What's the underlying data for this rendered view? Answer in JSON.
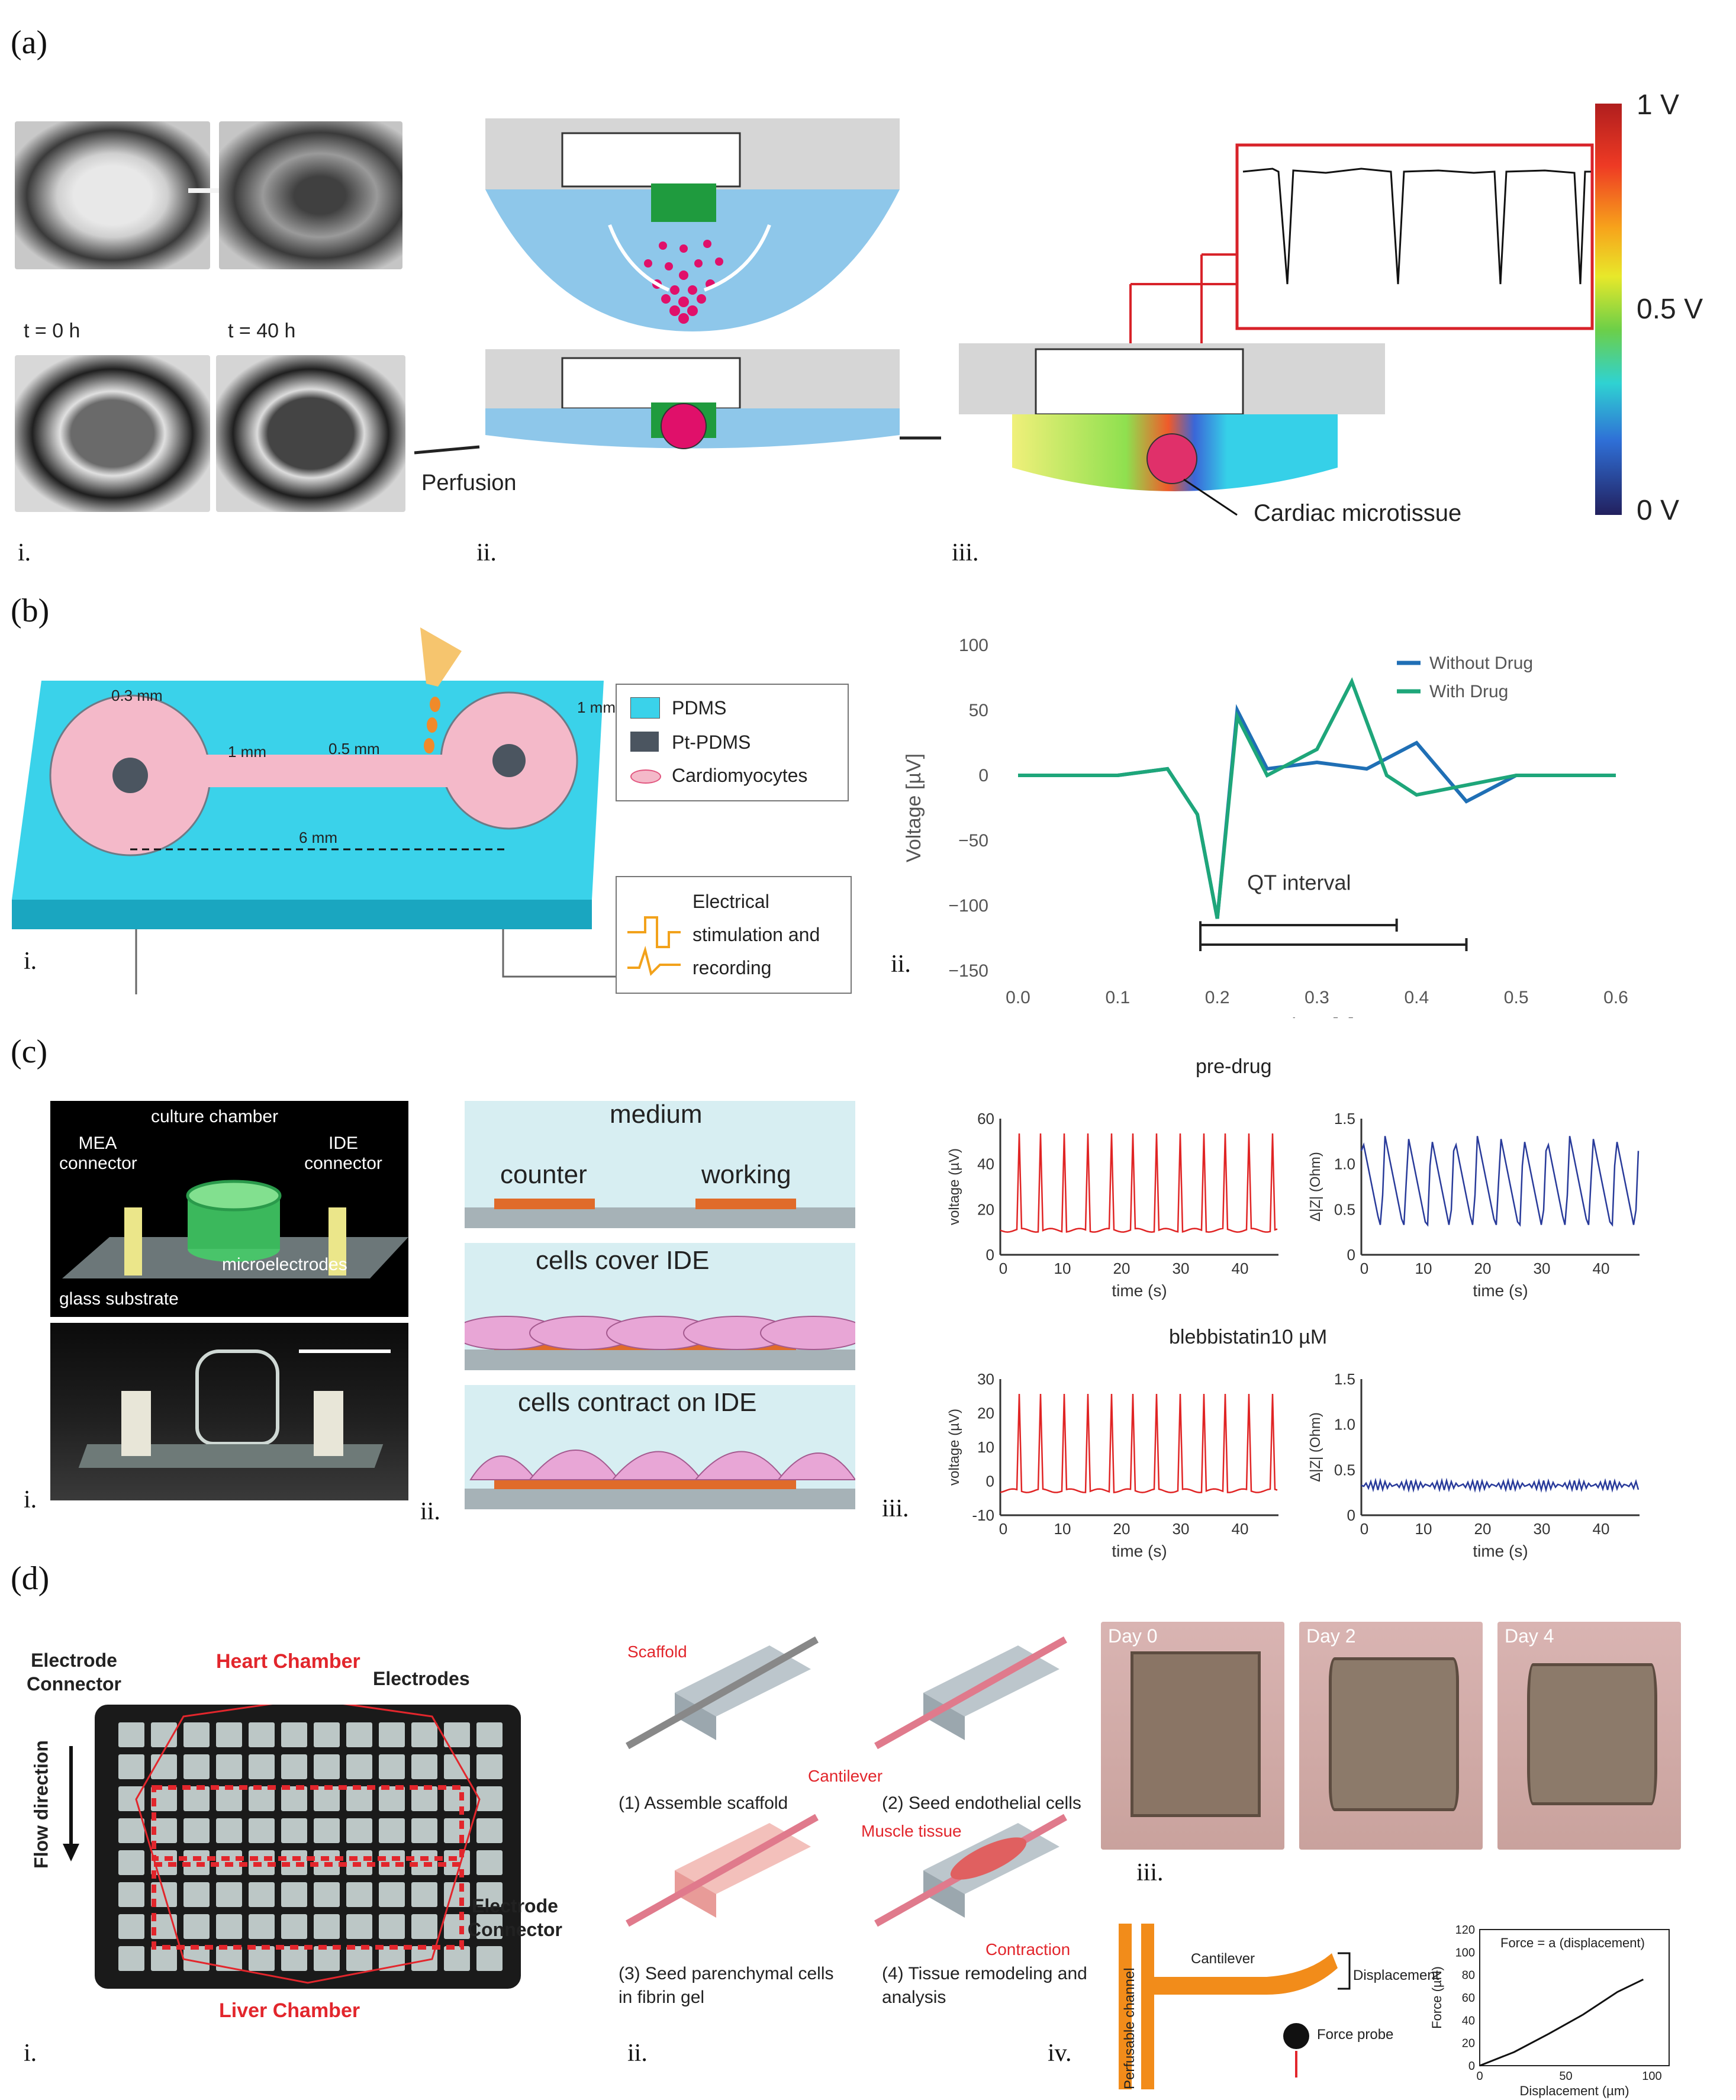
{
  "panels": {
    "a": {
      "letter": "(a)",
      "sub": {
        "i": "i.",
        "ii": "ii.",
        "iii": "iii."
      },
      "time_labels": [
        "t = 0 h",
        "t = 40 h"
      ],
      "perfusion": "Perfusion",
      "tissue": "Cardiac microtissue",
      "colorbar": {
        "max": "1 V",
        "mid": "0.5 V",
        "min": "0 V"
      }
    },
    "b": {
      "letter": "(b)",
      "sub": {
        "i": "i.",
        "ii": "ii."
      },
      "dims": {
        "d1": "0.3 mm",
        "d2": "1 mm",
        "d3": "0.5 mm",
        "d4": "1 mm",
        "d5": "6 mm"
      },
      "legend": [
        "PDMS",
        "Pt-PDMS",
        "Cardiomyocytes"
      ],
      "stim": "Electrical stimulation and recording",
      "plot": {
        "ylabel": "Voltage [µV]",
        "xlabel": "Time [s]",
        "annotation": "QT interval",
        "series": [
          "Without Drug",
          "With Drug"
        ],
        "yticks": [
          "100",
          "50",
          "0",
          "−50",
          "−100",
          "−150"
        ],
        "xticks": [
          "0.0",
          "0.1",
          "0.2",
          "0.3",
          "0.4",
          "0.5",
          "0.6"
        ]
      }
    },
    "c": {
      "letter": "(c)",
      "sub": {
        "i": "i.",
        "ii": "ii.",
        "iii": "iii."
      },
      "device": {
        "chamber": "culture chamber",
        "mea": "MEA connector",
        "ide": "IDE connector",
        "micro": "microelectrodes",
        "glass": "glass substrate"
      },
      "schem": {
        "medium": "medium",
        "counter": "counter",
        "working": "working",
        "cover": "cells cover IDE",
        "contract": "cells contract on IDE"
      },
      "pre": "pre-drug",
      "post": "blebbistatin10 µM",
      "volt_label": "voltage (µV)",
      "imp_label": "Δ|Z| (Ohm)",
      "time_label": "time (s)",
      "xticks": [
        "0",
        "10",
        "20",
        "30",
        "40"
      ],
      "v_ticks_pre": [
        "60",
        "40",
        "20",
        "0"
      ],
      "v_ticks_post": [
        "30",
        "20",
        "10",
        "0",
        "-10"
      ],
      "imp_ticks": [
        "1.5",
        "1.0",
        "0.5",
        "0"
      ]
    },
    "d": {
      "letter": "(d)",
      "sub": {
        "i": "i.",
        "ii": "ii.",
        "iii": "iii.",
        "iv": "iv."
      },
      "plate": {
        "connector": "Electrode Connector",
        "heart": "Heart Chamber",
        "electrodes": "Electrodes",
        "flow": "Flow direction",
        "liver": "Liver Chamber"
      },
      "steps": {
        "scaffold": "Scaffold",
        "cantilever": "Cantilever",
        "muscle": "Muscle tissue",
        "contraction": "Contraction",
        "s1": "(1) Assemble scaffold",
        "s2": "(2) Seed endothelial cells",
        "s3a": "(3) Seed parenchymal cells",
        "s3b": "in fibrin gel",
        "s4a": "(4) Tissue remodeling and",
        "s4b": "analysis"
      },
      "days": [
        "Day 0",
        "Day 2",
        "Day 4"
      ],
      "force": {
        "channel": "Perfusable channel",
        "cantilever": "Cantilever",
        "displacement": "Displacement",
        "probe": "Force probe",
        "title": "Force = a (displacement)",
        "ylabel": "Force (µN)",
        "xlabel": "Displacement (µm)",
        "yticks": [
          "120",
          "100",
          "80",
          "60",
          "40",
          "20",
          "0"
        ],
        "xticks": [
          "0",
          "50",
          "100"
        ]
      }
    }
  },
  "chart_data": [
    {
      "type": "line",
      "title": "",
      "xlabel": "Time [s]",
      "ylabel": "Voltage [µV]",
      "xlim": [
        0,
        0.6
      ],
      "ylim": [
        -150,
        100
      ],
      "series": [
        {
          "name": "Without Drug",
          "x": [
            0.0,
            0.1,
            0.15,
            0.18,
            0.2,
            0.22,
            0.25,
            0.3,
            0.35,
            0.4,
            0.45,
            0.5,
            0.6
          ],
          "y": [
            0,
            0,
            5,
            -30,
            -110,
            50,
            5,
            10,
            5,
            25,
            -20,
            0,
            0
          ]
        },
        {
          "name": "With Drug",
          "x": [
            0.0,
            0.1,
            0.15,
            0.18,
            0.2,
            0.22,
            0.25,
            0.3,
            0.335,
            0.37,
            0.4,
            0.5,
            0.6
          ],
          "y": [
            0,
            0,
            5,
            -30,
            -110,
            45,
            0,
            20,
            72,
            0,
            -15,
            0,
            0
          ]
        }
      ],
      "annotation": "QT interval"
    },
    {
      "type": "line",
      "title": "Force = a (displacement)",
      "xlabel": "Displacement (µm)",
      "ylabel": "Force (µN)",
      "xlim": [
        0,
        110
      ],
      "ylim": [
        0,
        120
      ],
      "series": [
        {
          "name": "Force",
          "x": [
            0,
            20,
            40,
            60,
            80,
            95
          ],
          "y": [
            0,
            12,
            28,
            45,
            65,
            76
          ]
        }
      ]
    }
  ]
}
